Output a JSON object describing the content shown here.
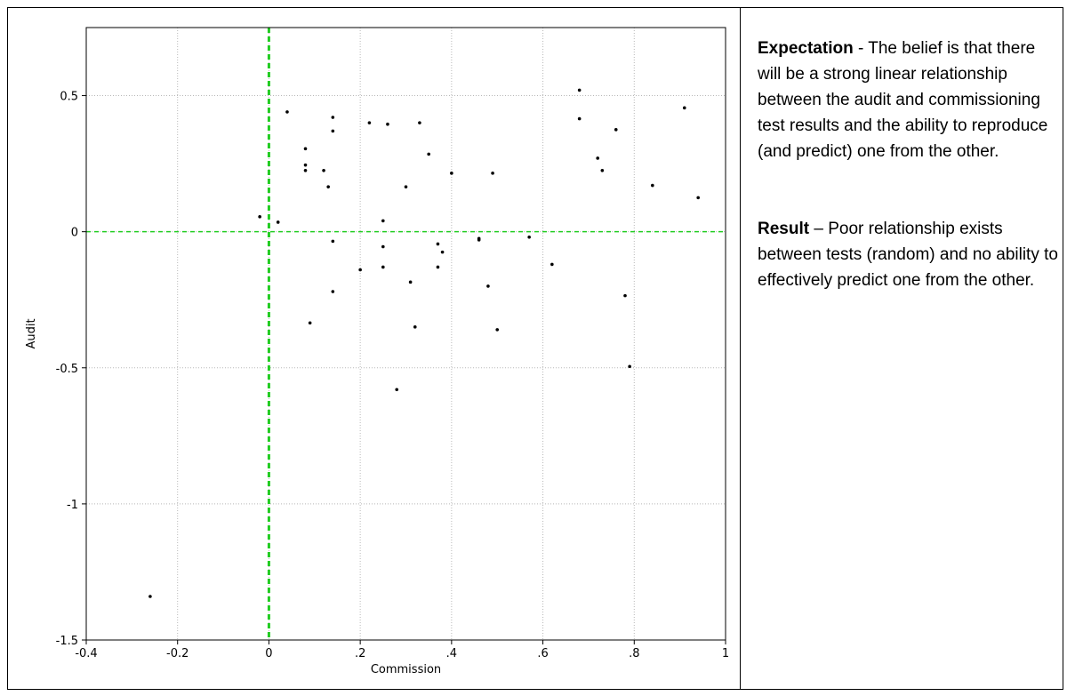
{
  "chart_data": {
    "type": "scatter",
    "title": "",
    "xlabel": "Commission",
    "ylabel": "Audit",
    "xlim": [
      -0.4,
      1.0
    ],
    "ylim": [
      -1.5,
      0.75
    ],
    "x_ticks": [
      {
        "value": -0.4,
        "label": "-0.4"
      },
      {
        "value": -0.2,
        "label": "-0.2"
      },
      {
        "value": 0,
        "label": "0"
      },
      {
        "value": 0.2,
        "label": ".2"
      },
      {
        "value": 0.4,
        "label": ".4"
      },
      {
        "value": 0.6,
        "label": ".6"
      },
      {
        "value": 0.8,
        "label": ".8"
      },
      {
        "value": 1.0,
        "label": "1"
      }
    ],
    "y_ticks": [
      {
        "value": 0.5,
        "label": "0.5"
      },
      {
        "value": 0,
        "label": "0"
      },
      {
        "value": -0.5,
        "label": "-0.5"
      },
      {
        "value": -1,
        "label": "-1"
      },
      {
        "value": -1.5,
        "label": "-1.5"
      }
    ],
    "grid": true,
    "reference_lines": {
      "x": 0,
      "y": 0,
      "color": "#22cc22"
    },
    "marker_color": "#000000",
    "points": [
      {
        "x": -0.26,
        "y": -1.34
      },
      {
        "x": -0.02,
        "y": 0.055
      },
      {
        "x": 0.02,
        "y": 0.035
      },
      {
        "x": 0.04,
        "y": 0.44
      },
      {
        "x": 0.08,
        "y": 0.305
      },
      {
        "x": 0.08,
        "y": 0.245
      },
      {
        "x": 0.08,
        "y": 0.225
      },
      {
        "x": 0.09,
        "y": -0.335
      },
      {
        "x": 0.12,
        "y": 0.225
      },
      {
        "x": 0.13,
        "y": 0.165
      },
      {
        "x": 0.14,
        "y": 0.42
      },
      {
        "x": 0.14,
        "y": 0.37
      },
      {
        "x": 0.14,
        "y": -0.035
      },
      {
        "x": 0.14,
        "y": -0.22
      },
      {
        "x": 0.2,
        "y": -0.14
      },
      {
        "x": 0.22,
        "y": 0.4
      },
      {
        "x": 0.25,
        "y": 0.04
      },
      {
        "x": 0.25,
        "y": -0.055
      },
      {
        "x": 0.25,
        "y": -0.13
      },
      {
        "x": 0.26,
        "y": 0.395
      },
      {
        "x": 0.28,
        "y": -0.58
      },
      {
        "x": 0.3,
        "y": 0.165
      },
      {
        "x": 0.31,
        "y": -0.185
      },
      {
        "x": 0.32,
        "y": -0.35
      },
      {
        "x": 0.33,
        "y": 0.4
      },
      {
        "x": 0.35,
        "y": 0.285
      },
      {
        "x": 0.37,
        "y": -0.045
      },
      {
        "x": 0.37,
        "y": -0.13
      },
      {
        "x": 0.38,
        "y": -0.075
      },
      {
        "x": 0.4,
        "y": 0.215
      },
      {
        "x": 0.46,
        "y": -0.025
      },
      {
        "x": 0.46,
        "y": -0.03
      },
      {
        "x": 0.48,
        "y": -0.2
      },
      {
        "x": 0.49,
        "y": 0.215
      },
      {
        "x": 0.5,
        "y": -0.36
      },
      {
        "x": 0.57,
        "y": -0.02
      },
      {
        "x": 0.62,
        "y": -0.12
      },
      {
        "x": 0.68,
        "y": 0.52
      },
      {
        "x": 0.68,
        "y": 0.415
      },
      {
        "x": 0.72,
        "y": 0.27
      },
      {
        "x": 0.73,
        "y": 0.225
      },
      {
        "x": 0.76,
        "y": 0.375
      },
      {
        "x": 0.78,
        "y": -0.235
      },
      {
        "x": 0.79,
        "y": -0.495
      },
      {
        "x": 0.84,
        "y": 0.17
      },
      {
        "x": 0.91,
        "y": 0.455
      },
      {
        "x": 0.94,
        "y": 0.125
      }
    ]
  },
  "notes": {
    "expectation_heading": "Expectation",
    "expectation_text": " - The belief is that there will be a strong linear relationship between the audit and commissioning test results and the ability to reproduce (and predict) one from the other.",
    "result_heading": "Result",
    "result_text": " – Poor relationship exists between tests (random) and no ability to effectively predict one from the other."
  }
}
